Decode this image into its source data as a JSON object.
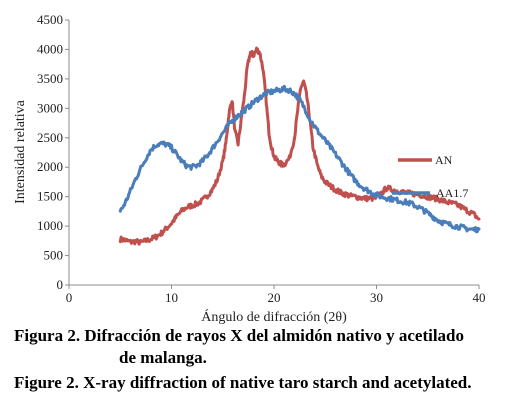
{
  "chart_data": {
    "type": "line",
    "xlabel": "Ángulo de difracción (2θ)",
    "ylabel": "Intensidad relativa",
    "xlim": [
      0,
      40
    ],
    "ylim": [
      0,
      4500
    ],
    "xticks": [
      0,
      10,
      20,
      30,
      40
    ],
    "yticks": [
      0,
      500,
      1000,
      1500,
      2000,
      2500,
      3000,
      3500,
      4000,
      4500
    ],
    "grid": false,
    "series": [
      {
        "name": "AN",
        "color": "#c0504d",
        "x": [
          5,
          5.5,
          6,
          6.5,
          7,
          7.5,
          8,
          8.5,
          9,
          9.5,
          10,
          10.5,
          11,
          11.5,
          12,
          12.5,
          13,
          13.5,
          14,
          14.5,
          15,
          15.3,
          15.6,
          15.9,
          16.2,
          16.5,
          16.8,
          17.1,
          17.4,
          17.7,
          18,
          18.3,
          18.6,
          18.9,
          19.2,
          19.5,
          19.8,
          20.1,
          20.4,
          20.7,
          21,
          21.5,
          22,
          22.3,
          22.6,
          22.9,
          23.2,
          23.5,
          23.8,
          24.2,
          24.6,
          25,
          25.5,
          26,
          26.5,
          27,
          27.5,
          28,
          28.5,
          29,
          29.5,
          30,
          30.5,
          31,
          31.5,
          32,
          32.5,
          33,
          33.5,
          34,
          34.5,
          35,
          35.5,
          36,
          36.5,
          37,
          37.5,
          38,
          38.5,
          39,
          39.5,
          40
        ],
        "values": [
          780,
          760,
          730,
          740,
          720,
          750,
          780,
          820,
          880,
          960,
          1050,
          1160,
          1260,
          1320,
          1350,
          1380,
          1430,
          1520,
          1620,
          1800,
          2100,
          2400,
          2900,
          3150,
          2600,
          2400,
          2800,
          3200,
          3700,
          3950,
          3900,
          4000,
          3950,
          3700,
          3200,
          2600,
          2300,
          2150,
          2100,
          2050,
          2050,
          2150,
          2500,
          2950,
          3350,
          3450,
          3200,
          2800,
          2350,
          2050,
          1850,
          1750,
          1680,
          1620,
          1570,
          1540,
          1510,
          1500,
          1480,
          1470,
          1470,
          1480,
          1560,
          1650,
          1620,
          1600,
          1580,
          1560,
          1550,
          1540,
          1520,
          1500,
          1480,
          1460,
          1430,
          1400,
          1380,
          1350,
          1300,
          1250,
          1200,
          1120
        ]
      },
      {
        "name": "AA1.7",
        "color": "#4a7ebb",
        "x": [
          5,
          5.5,
          6,
          6.5,
          7,
          7.5,
          8,
          8.5,
          9,
          9.5,
          10,
          10.5,
          11,
          11.5,
          12,
          12.5,
          13,
          13.5,
          14,
          14.5,
          15,
          15.5,
          16,
          16.5,
          17,
          17.5,
          18,
          18.5,
          19,
          19.5,
          20,
          20.5,
          21,
          21.5,
          22,
          22.5,
          23,
          23.5,
          24,
          24.5,
          25,
          25.5,
          26,
          26.5,
          27,
          27.5,
          28,
          28.5,
          29,
          29.5,
          30,
          30.5,
          31,
          31.5,
          32,
          32.5,
          33,
          33.5,
          34,
          34.5,
          35,
          35.5,
          36,
          36.5,
          37,
          37.5,
          38,
          38.5,
          39,
          39.5,
          40
        ],
        "values": [
          1250,
          1400,
          1600,
          1800,
          1980,
          2150,
          2300,
          2380,
          2400,
          2390,
          2330,
          2220,
          2100,
          2020,
          2000,
          2030,
          2100,
          2200,
          2320,
          2450,
          2580,
          2700,
          2800,
          2880,
          2950,
          3020,
          3100,
          3170,
          3230,
          3270,
          3290,
          3310,
          3330,
          3310,
          3250,
          3150,
          3000,
          2820,
          2680,
          2560,
          2450,
          2340,
          2220,
          2100,
          1980,
          1860,
          1760,
          1680,
          1620,
          1570,
          1530,
          1500,
          1480,
          1460,
          1440,
          1420,
          1400,
          1370,
          1330,
          1280,
          1220,
          1160,
          1100,
          1060,
          1030,
          1010,
          990,
          970,
          950,
          940,
          950
        ]
      }
    ],
    "legend_position": "right"
  },
  "caption": {
    "line1": "Figura 2. Difracción de rayos X del almidón nativo y acetilado",
    "line1b": "de malanga.",
    "line2": "Figure 2. X-ray diffraction of native taro starch and acetylated."
  }
}
